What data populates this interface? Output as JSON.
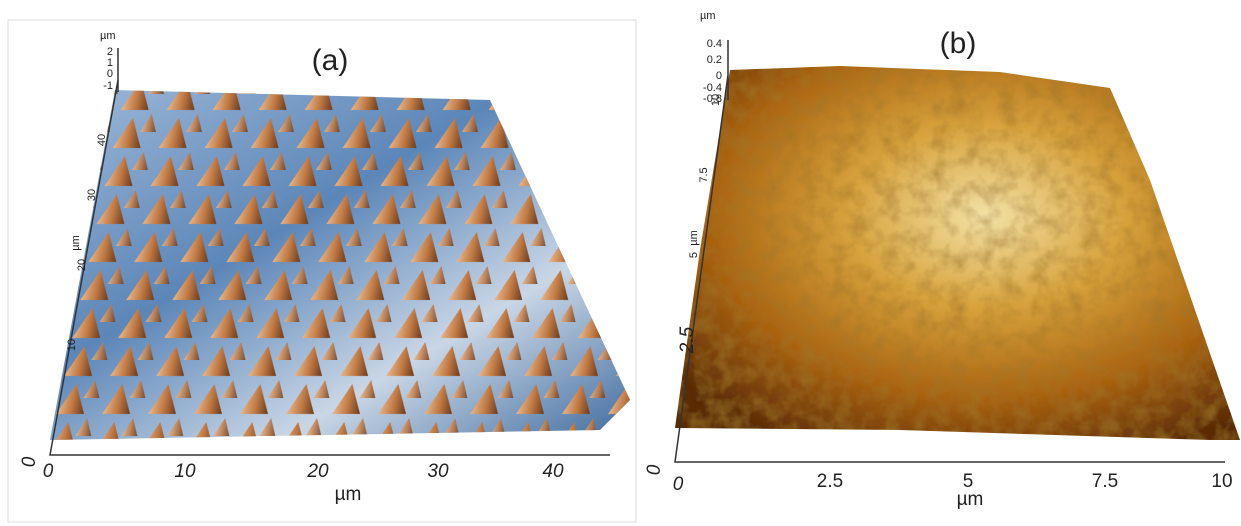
{
  "panels": [
    {
      "label": "(a)",
      "z_axis": {
        "unit": "µm",
        "ticks": [
          "2",
          "1",
          "0",
          "-1"
        ]
      },
      "y_axis": {
        "unit": "µm",
        "ticks": [
          "0",
          "10",
          "20",
          "30",
          "40"
        ]
      },
      "x_axis": {
        "unit": "µm",
        "ticks": [
          "0",
          "10",
          "20",
          "30",
          "40"
        ]
      }
    },
    {
      "label": "(b)",
      "z_axis": {
        "unit": "µm",
        "ticks": [
          "0.4",
          "0.2",
          "0",
          "-0.4",
          "-0.8"
        ]
      },
      "y_axis": {
        "unit": "µm",
        "ticks": [
          "0",
          "2.5",
          "5",
          "7.5",
          "10"
        ]
      },
      "x_axis": {
        "unit": "µm",
        "ticks": [
          "0",
          "2.5",
          "5",
          "7.5",
          "10"
        ]
      }
    }
  ]
}
